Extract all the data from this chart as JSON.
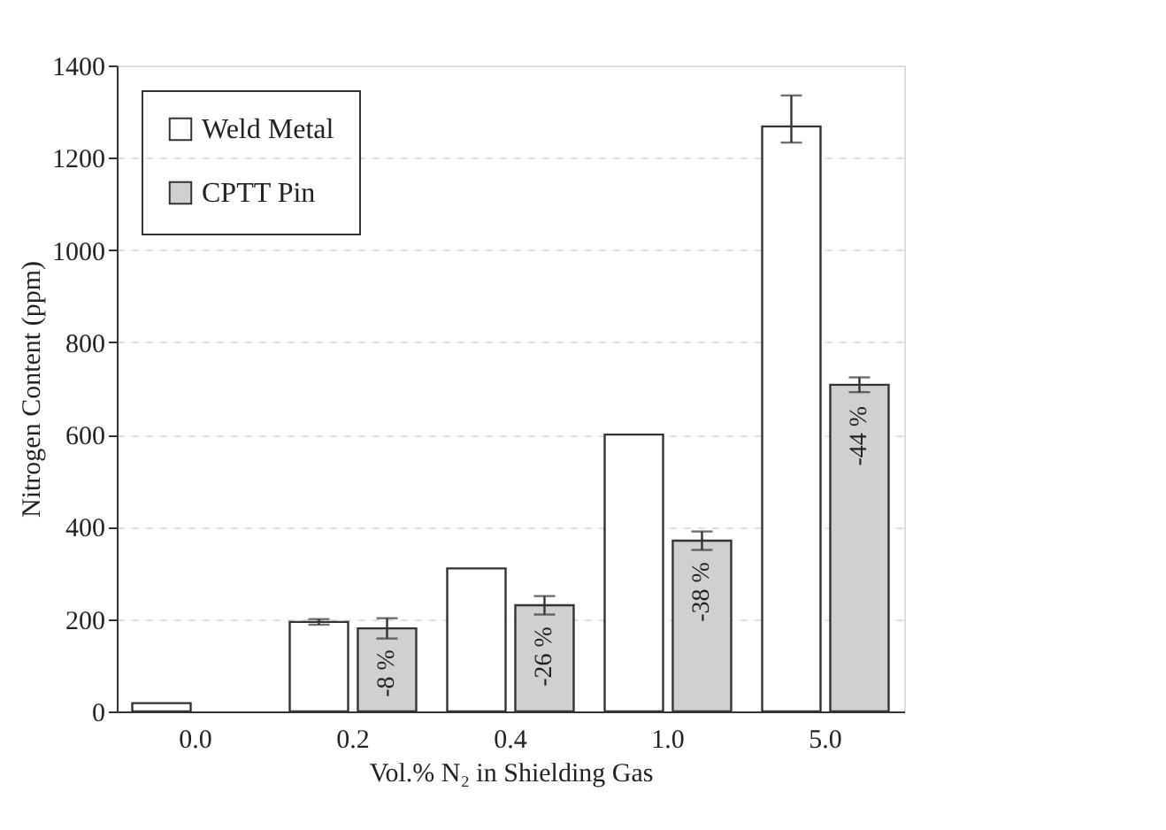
{
  "chart_data": {
    "type": "bar",
    "xlabel": "Vol.% N₂ in Shielding Gas",
    "ylabel": "Nitrogen Content (ppm)",
    "categories": [
      "0.0",
      "0.2",
      "0.4",
      "1.0",
      "5.0"
    ],
    "series": [
      {
        "name": "Weld Metal",
        "color": "#ffffff",
        "values": [
          18,
          194,
          310,
          600,
          1268
        ],
        "errors": [
          null,
          6,
          null,
          null,
          [
            1233,
            1335
          ]
        ]
      },
      {
        "name": "CPTT Pin",
        "color": "#d0d0d0",
        "values": [
          null,
          180,
          230,
          370,
          708
        ],
        "errors": [
          null,
          22,
          20,
          20,
          16
        ]
      }
    ],
    "annotations": [
      {
        "text": "-8 %",
        "x": "0.2",
        "y": 180
      },
      {
        "text": "-26 %",
        "x": "0.4",
        "y": 230
      },
      {
        "text": "-38 %",
        "x": "1.0",
        "y": 370
      },
      {
        "text": "-44 %",
        "x": "5.0",
        "y": 708
      }
    ],
    "ylim": [
      0,
      1400
    ],
    "yticks": [
      0,
      200,
      400,
      600,
      800,
      1000,
      1200,
      1400
    ],
    "grid": "y",
    "legend": "top left"
  }
}
